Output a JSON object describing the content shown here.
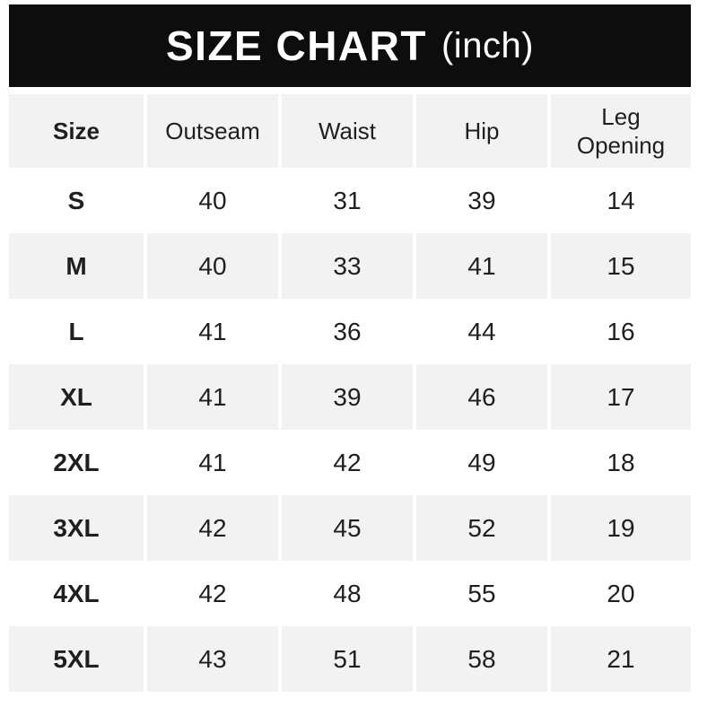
{
  "title": {
    "main": "SIZE CHART",
    "unit": "(inch)"
  },
  "table": {
    "columns": [
      "Size",
      "Outseam",
      "Waist",
      "Hip",
      "Leg Opening"
    ],
    "rows": [
      {
        "size": "S",
        "values": [
          "40",
          "31",
          "39",
          "14"
        ]
      },
      {
        "size": "M",
        "values": [
          "40",
          "33",
          "41",
          "15"
        ]
      },
      {
        "size": "L",
        "values": [
          "41",
          "36",
          "44",
          "16"
        ]
      },
      {
        "size": "XL",
        "values": [
          "41",
          "39",
          "46",
          "17"
        ]
      },
      {
        "size": "2XL",
        "values": [
          "41",
          "42",
          "49",
          "18"
        ]
      },
      {
        "size": "3XL",
        "values": [
          "42",
          "45",
          "52",
          "19"
        ]
      },
      {
        "size": "4XL",
        "values": [
          "42",
          "48",
          "55",
          "20"
        ]
      },
      {
        "size": "5XL",
        "values": [
          "43",
          "51",
          "58",
          "21"
        ]
      }
    ]
  },
  "colors": {
    "title_bar_bg": "#0d0d0d",
    "title_text": "#ffffff",
    "row_alt_bg": "#f2f2f2",
    "row_base_bg": "#ffffff",
    "text": "#1f1f1f"
  },
  "chart_data": {
    "type": "table",
    "title": "SIZE CHART (inch)",
    "columns": [
      "Size",
      "Outseam",
      "Waist",
      "Hip",
      "Leg Opening"
    ],
    "rows": [
      [
        "S",
        40,
        31,
        39,
        14
      ],
      [
        "M",
        40,
        33,
        41,
        15
      ],
      [
        "L",
        41,
        36,
        44,
        16
      ],
      [
        "XL",
        41,
        39,
        46,
        17
      ],
      [
        "2XL",
        41,
        42,
        49,
        18
      ],
      [
        "3XL",
        42,
        45,
        52,
        19
      ],
      [
        "4XL",
        42,
        48,
        55,
        20
      ],
      [
        "5XL",
        43,
        51,
        58,
        21
      ]
    ]
  }
}
